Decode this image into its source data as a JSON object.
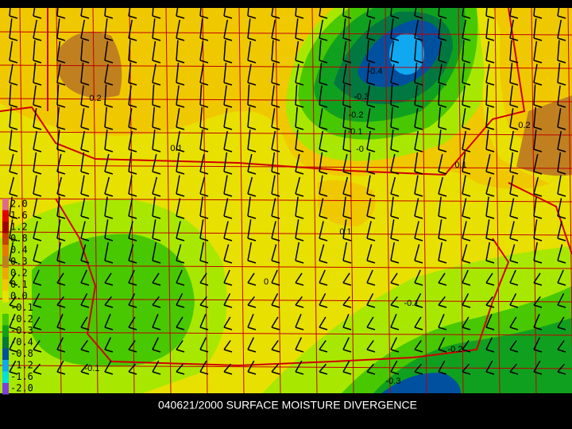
{
  "caption": "040621/2000 SURFACE MOISTURE DIVERGENCE",
  "legend": {
    "items": [
      {
        "label": "2.0",
        "color": "#e06a8a"
      },
      {
        "label": "1.6",
        "color": "#e00000"
      },
      {
        "label": "1.2",
        "color": "#a00000"
      },
      {
        "label": "0.8",
        "color": "#c84000"
      },
      {
        "label": "0.4",
        "color": "#e87800"
      },
      {
        "label": "0.3",
        "color": "#c08020"
      },
      {
        "label": "0.2",
        "color": "#f0a800"
      },
      {
        "label": "0.1",
        "color": "#f0c800"
      },
      {
        "label": "0.0",
        "color": "#e8e000"
      },
      {
        "label": "-0.1",
        "color": "#a8e800"
      },
      {
        "label": "-0.2",
        "color": "#48c800"
      },
      {
        "label": "-0.3",
        "color": "#10a020"
      },
      {
        "label": "-0.4",
        "color": "#007840"
      },
      {
        "label": "-0.8",
        "color": "#0050a0"
      },
      {
        "label": "-1.2",
        "color": "#10a8f0"
      },
      {
        "label": "-1.6",
        "color": "#00e0e0"
      },
      {
        "label": "-2.0",
        "color": "#8040e0"
      }
    ]
  },
  "contour_labels": [
    "-0.4",
    "-0.3",
    "-0.2",
    "-0.1",
    "-0",
    "0.2",
    "0.1",
    "0.1",
    "0.2",
    "0.1",
    "0",
    "-0.1",
    "-0.2",
    "-0.3",
    "-0.1"
  ]
}
